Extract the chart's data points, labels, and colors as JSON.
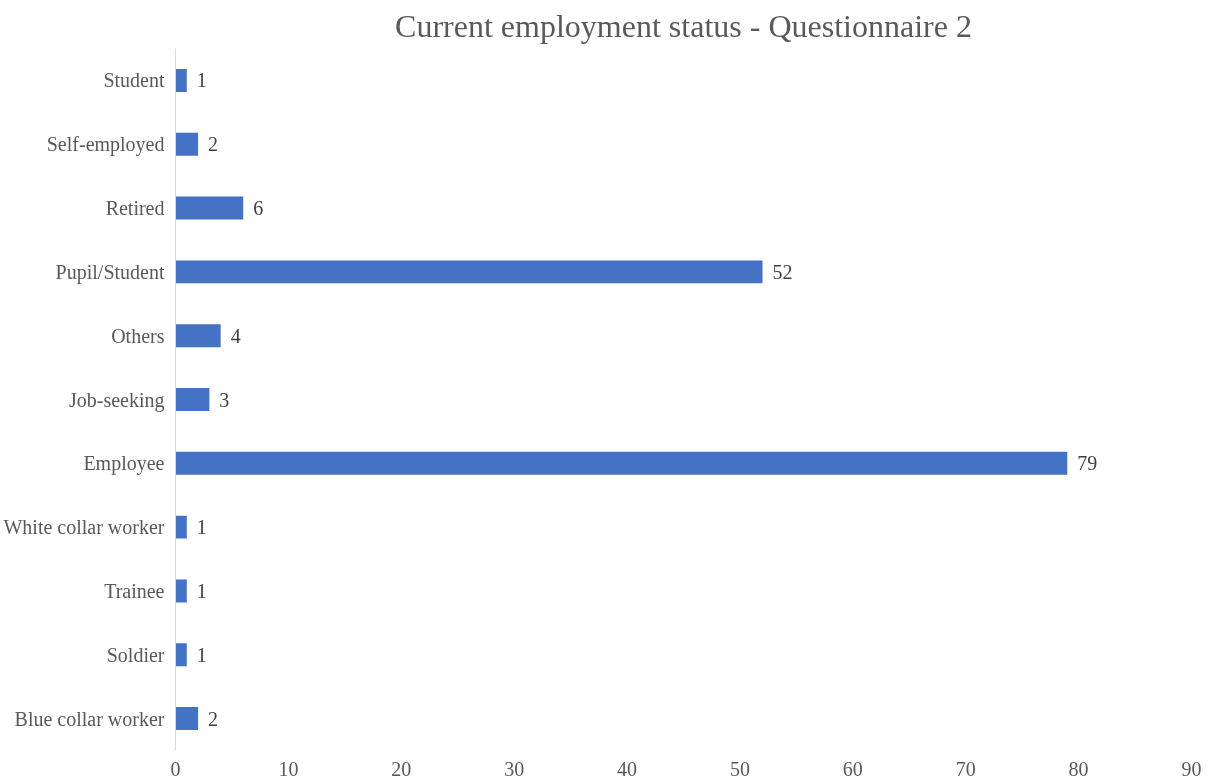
{
  "chart_data": {
    "type": "bar",
    "orientation": "horizontal",
    "title": "Current employment status - Questionnaire 2",
    "categories": [
      "Student",
      "Self-employed",
      "Retired",
      "Pupil/Student",
      "Others",
      "Job-seeking",
      "Employee",
      "White collar worker",
      "Trainee",
      "Soldier",
      "Blue collar worker"
    ],
    "values": [
      1,
      2,
      6,
      52,
      4,
      3,
      79,
      1,
      1,
      1,
      2
    ],
    "color": "#4472c4",
    "xlim": [
      0,
      90
    ],
    "xticks": [
      0,
      10,
      20,
      30,
      40,
      50,
      60,
      70,
      80,
      90
    ],
    "data_labels": true,
    "grid": false
  }
}
